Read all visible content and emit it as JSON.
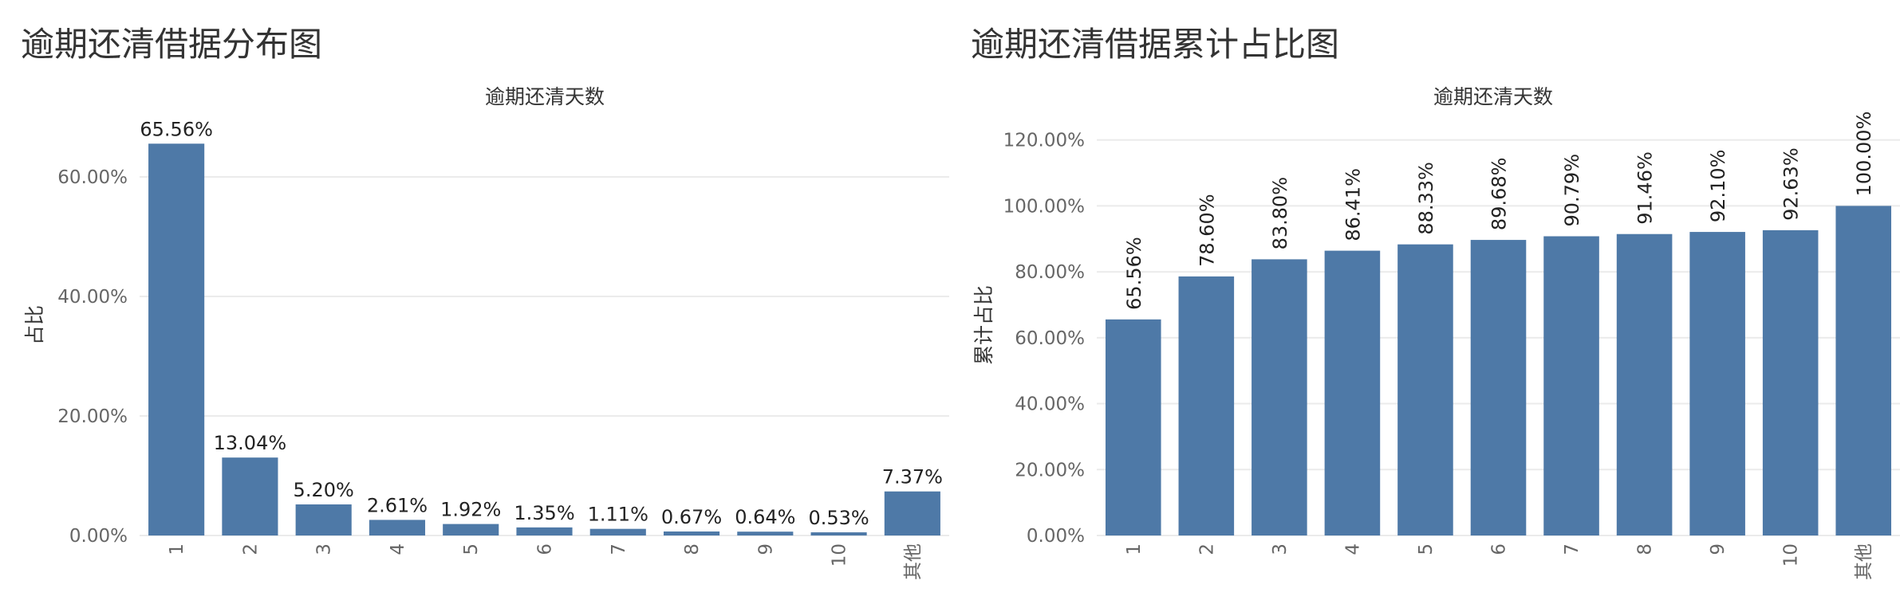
{
  "chart_data": [
    {
      "type": "bar",
      "title": "逾期还清借据分布图",
      "subtitle": "逾期还清天数",
      "xlabel": "",
      "ylabel": "占比",
      "categories": [
        "1",
        "2",
        "3",
        "4",
        "5",
        "6",
        "7",
        "8",
        "9",
        "10",
        "其他"
      ],
      "values": [
        65.56,
        13.04,
        5.2,
        2.61,
        1.92,
        1.35,
        1.11,
        0.67,
        0.64,
        0.53,
        7.37
      ],
      "value_labels": [
        "65.56%",
        "13.04%",
        "5.20%",
        "2.61%",
        "1.92%",
        "1.35%",
        "1.11%",
        "0.67%",
        "0.64%",
        "0.53%",
        "7.37%"
      ],
      "yticks": [
        0,
        20,
        40,
        60
      ],
      "ytick_labels": [
        "0.00%",
        "20.00%",
        "40.00%",
        "60.00%"
      ],
      "ylim": [
        0,
        72
      ],
      "label_orientation": "horizontal",
      "bar_color": "#4e79a7",
      "grid": true
    },
    {
      "type": "bar",
      "title": "逾期还清借据累计占比图",
      "subtitle": "逾期还清天数",
      "xlabel": "",
      "ylabel": "累计占比",
      "categories": [
        "1",
        "2",
        "3",
        "4",
        "5",
        "6",
        "7",
        "8",
        "9",
        "10",
        "其他"
      ],
      "values": [
        65.56,
        78.6,
        83.8,
        86.41,
        88.33,
        89.68,
        90.79,
        91.46,
        92.1,
        92.63,
        100.0
      ],
      "value_labels": [
        "65.56%",
        "78.60%",
        "83.80%",
        "86.41%",
        "88.33%",
        "89.68%",
        "90.79%",
        "91.46%",
        "92.10%",
        "92.63%",
        "100.00%"
      ],
      "yticks": [
        0,
        20,
        40,
        60,
        80,
        100,
        120
      ],
      "ytick_labels": [
        "0.00%",
        "20.00%",
        "40.00%",
        "60.00%",
        "80.00%",
        "100.00%",
        "120.00%"
      ],
      "ylim": [
        0,
        125
      ],
      "label_orientation": "vertical",
      "bar_color": "#4e79a7",
      "grid": true
    }
  ]
}
